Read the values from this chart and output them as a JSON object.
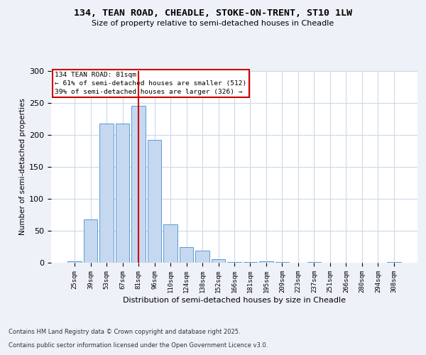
{
  "title1": "134, TEAN ROAD, CHEADLE, STOKE-ON-TRENT, ST10 1LW",
  "title2": "Size of property relative to semi-detached houses in Cheadle",
  "xlabel": "Distribution of semi-detached houses by size in Cheadle",
  "ylabel": "Number of semi-detached properties",
  "categories": [
    "25sqm",
    "39sqm",
    "53sqm",
    "67sqm",
    "81sqm",
    "96sqm",
    "110sqm",
    "124sqm",
    "138sqm",
    "152sqm",
    "166sqm",
    "181sqm",
    "195sqm",
    "209sqm",
    "223sqm",
    "237sqm",
    "251sqm",
    "266sqm",
    "280sqm",
    "294sqm",
    "308sqm"
  ],
  "values": [
    2,
    68,
    218,
    218,
    246,
    192,
    60,
    24,
    19,
    6,
    1,
    1,
    2,
    1,
    0,
    1,
    0,
    0,
    0,
    0,
    1
  ],
  "bar_color": "#c5d8f0",
  "bar_edge_color": "#5b9bd5",
  "vline_x": 4,
  "vline_color": "#cc0000",
  "annotation_text": "134 TEAN ROAD: 81sqm\n← 61% of semi-detached houses are smaller (512)\n39% of semi-detached houses are larger (326) →",
  "annotation_box_color": "#cc0000",
  "ylim": [
    0,
    300
  ],
  "yticks": [
    0,
    50,
    100,
    150,
    200,
    250,
    300
  ],
  "footer1": "Contains HM Land Registry data © Crown copyright and database right 2025.",
  "footer2": "Contains public sector information licensed under the Open Government Licence v3.0.",
  "bg_color": "#eef2f8",
  "plot_bg_color": "#ffffff",
  "grid_color": "#c8d4e8"
}
